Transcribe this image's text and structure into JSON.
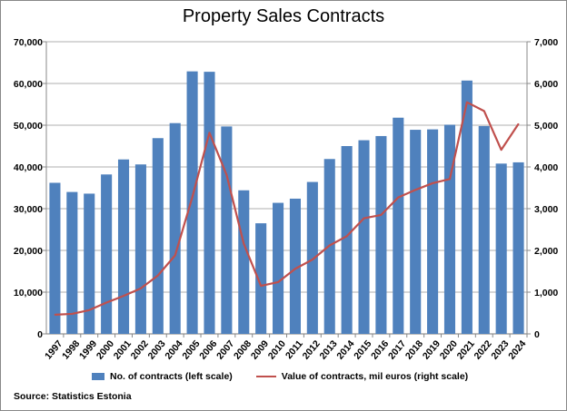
{
  "chart_data": {
    "type": "bar+line",
    "title": "Property Sales Contracts",
    "categories": [
      "1997",
      "1998",
      "1999",
      "2000",
      "2001",
      "2002",
      "2003",
      "2004",
      "2005",
      "2006",
      "2007",
      "2008",
      "2009",
      "2010",
      "2011",
      "2012",
      "2013",
      "2014",
      "2015",
      "2016",
      "2017",
      "2018",
      "2019",
      "2020",
      "2021",
      "2022",
      "2023",
      "2024"
    ],
    "series": [
      {
        "name": "No. of contracts (left scale)",
        "type": "bar",
        "axis": "left",
        "color": "#4f81bd",
        "values": [
          36200,
          34000,
          33600,
          38200,
          41800,
          40600,
          46900,
          50500,
          62900,
          62800,
          49700,
          34400,
          26500,
          31400,
          32400,
          36400,
          41900,
          45000,
          46400,
          47400,
          51800,
          48900,
          49000,
          50100,
          60700,
          49800,
          40800,
          41100
        ]
      },
      {
        "name": "Value of contracts, mil euros (right scale)",
        "type": "line",
        "axis": "right",
        "color": "#c0504d",
        "values": [
          460,
          480,
          570,
          750,
          910,
          1090,
          1400,
          1880,
          3270,
          4820,
          3810,
          2160,
          1150,
          1240,
          1560,
          1780,
          2120,
          2340,
          2770,
          2850,
          3270,
          3450,
          3610,
          3710,
          5550,
          5340,
          4410,
          5030
        ]
      }
    ],
    "left_axis": {
      "range": [
        0,
        70000
      ],
      "ticks": [
        "0",
        "10,000",
        "20,000",
        "30,000",
        "40,000",
        "50,000",
        "60,000",
        "70,000"
      ]
    },
    "right_axis": {
      "range": [
        0,
        7000
      ],
      "ticks": [
        "0",
        "1,000",
        "2,000",
        "3,000",
        "4,000",
        "5,000",
        "6,000",
        "7,000"
      ]
    },
    "grid": true,
    "legend": "bottom",
    "source": "Source: Statistics Estonia"
  }
}
